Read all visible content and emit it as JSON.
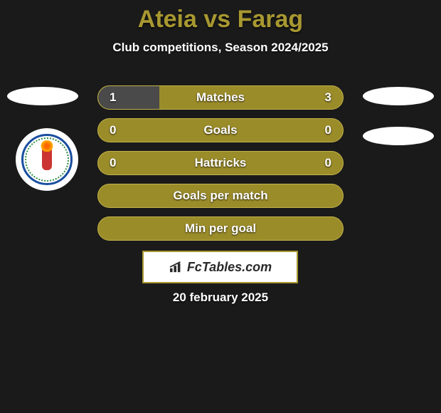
{
  "title": "Ateia vs Farag",
  "title_color": "#a89830",
  "subtitle": "Club competitions, Season 2024/2025",
  "date": "20 february 2025",
  "brand": "FcTables.com",
  "colors": {
    "background": "#1a1a1a",
    "bar_olive": "#9b8c2a",
    "bar_dark": "#4a4a4a",
    "bar_border": "#c2b24a",
    "text": "#ffffff"
  },
  "bars": [
    {
      "label": "Matches",
      "left_val": "1",
      "right_val": "3",
      "left_pct": 25,
      "right_pct": 75,
      "left_color": "#4a4a4a",
      "right_color": "#9b8c2a"
    },
    {
      "label": "Goals",
      "left_val": "0",
      "right_val": "0",
      "left_pct": 0,
      "right_pct": 0,
      "left_color": "#9b8c2a",
      "right_color": "#9b8c2a",
      "full_bg": "#9b8c2a"
    },
    {
      "label": "Hattricks",
      "left_val": "0",
      "right_val": "0",
      "left_pct": 0,
      "right_pct": 0,
      "full_bg": "#9b8c2a"
    },
    {
      "label": "Goals per match",
      "left_val": "",
      "right_val": "",
      "full_bg": "#9b8c2a"
    },
    {
      "label": "Min per goal",
      "left_val": "",
      "right_val": "",
      "full_bg": "#9b8c2a"
    }
  ]
}
